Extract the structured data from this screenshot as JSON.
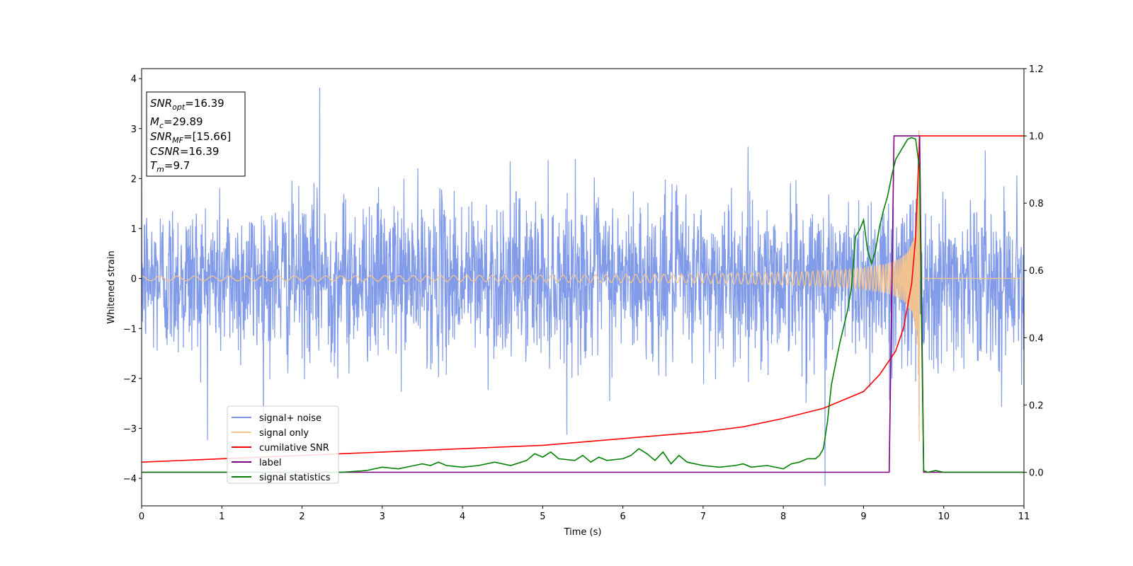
{
  "chart_data": {
    "type": "line",
    "title": "",
    "xlabel": "Time (s)",
    "ylabel": "Whitened strain",
    "xlim": [
      0,
      11
    ],
    "ylim": [
      -4.55,
      4.2
    ],
    "y2lim": [
      -0.1,
      1.2
    ],
    "x_ticks": [
      "0",
      "1",
      "2",
      "3",
      "4",
      "5",
      "6",
      "7",
      "8",
      "9",
      "10",
      "11"
    ],
    "y_ticks": [
      "−4",
      "−3",
      "−2",
      "−1",
      "0",
      "1",
      "2",
      "3",
      "4"
    ],
    "y2_ticks": [
      "0.0",
      "0.2",
      "0.4",
      "0.6",
      "0.8",
      "1.0",
      "1.2"
    ],
    "y_tick_values": [
      -4,
      -3,
      -2,
      -1,
      0,
      1,
      2,
      3,
      4
    ],
    "y2_tick_values": [
      0,
      0.2,
      0.4,
      0.6,
      0.8,
      1.0,
      1.2
    ],
    "grid": false,
    "legend_position": "lower-left",
    "info_box": {
      "snr_opt": {
        "base": "SNR",
        "sub": "opt",
        "value": "=16.39"
      },
      "mc": {
        "base": "M",
        "sub": "c",
        "value": "=29.89"
      },
      "snr_mf": {
        "base": "SNR",
        "sub": "MF",
        "value": "=[15.66]"
      },
      "csnr": {
        "base": "CSNR",
        "value": "=16.39"
      },
      "tm": {
        "base": "T",
        "sub": "m",
        "value": "=9.7"
      }
    },
    "series": [
      {
        "name": "signal+ noise",
        "axis": "left",
        "color": "#7b96e8",
        "amplitude_std": 0.8,
        "x_range": [
          0,
          11
        ],
        "peak": {
          "x": 2.22,
          "y": 3.82
        },
        "trough": {
          "x": 8.52,
          "y": -4.15
        }
      },
      {
        "name": "signal only",
        "axis": "left",
        "color": "#f5c48a",
        "merger_time": 9.7,
        "peak_amplitude": 3.3
      },
      {
        "name": "cumilative SNR",
        "axis": "right",
        "color": "#ff0000",
        "x": [
          0,
          1,
          2,
          3,
          4,
          5,
          6,
          7,
          7.5,
          8,
          8.5,
          9,
          9.2,
          9.4,
          9.5,
          9.6,
          9.65,
          9.7,
          9.75,
          11
        ],
        "y": [
          0.03,
          0.04,
          0.05,
          0.06,
          0.07,
          0.08,
          0.1,
          0.12,
          0.135,
          0.16,
          0.19,
          0.24,
          0.29,
          0.36,
          0.43,
          0.56,
          0.7,
          1.0,
          1.0,
          1.0
        ]
      },
      {
        "name": "label",
        "axis": "right",
        "color": "#800080",
        "x": [
          0,
          9.32,
          9.38,
          9.7,
          9.75,
          11
        ],
        "y": [
          0,
          0,
          1,
          1,
          0,
          0
        ]
      },
      {
        "name": "signal statistics",
        "axis": "right",
        "color": "#008000",
        "x": [
          0,
          0.5,
          1,
          1.5,
          2,
          2.5,
          2.8,
          3.0,
          3.2,
          3.4,
          3.5,
          3.6,
          3.7,
          3.8,
          4.0,
          4.2,
          4.4,
          4.6,
          4.8,
          4.9,
          5.0,
          5.1,
          5.2,
          5.4,
          5.5,
          5.6,
          5.7,
          5.8,
          6.0,
          6.1,
          6.2,
          6.3,
          6.4,
          6.5,
          6.6,
          6.7,
          6.8,
          7.0,
          7.2,
          7.4,
          7.5,
          7.6,
          7.8,
          8.0,
          8.1,
          8.2,
          8.3,
          8.4,
          8.45,
          8.5,
          8.55,
          8.6,
          8.7,
          8.8,
          8.85,
          8.9,
          8.95,
          9.0,
          9.05,
          9.1,
          9.15,
          9.2,
          9.25,
          9.3,
          9.35,
          9.4,
          9.45,
          9.5,
          9.55,
          9.6,
          9.65,
          9.7,
          9.72,
          9.75,
          9.8,
          9.9,
          10.0,
          10.2,
          10.5,
          11
        ],
        "y": [
          0,
          0,
          0,
          0,
          0,
          0,
          0.005,
          0.015,
          0.01,
          0.02,
          0.025,
          0.02,
          0.03,
          0.02,
          0.015,
          0.02,
          0.03,
          0.02,
          0.035,
          0.055,
          0.045,
          0.06,
          0.04,
          0.035,
          0.05,
          0.03,
          0.045,
          0.035,
          0.04,
          0.05,
          0.07,
          0.055,
          0.035,
          0.06,
          0.025,
          0.05,
          0.03,
          0.02,
          0.015,
          0.02,
          0.025,
          0.015,
          0.02,
          0.01,
          0.025,
          0.03,
          0.04,
          0.04,
          0.05,
          0.07,
          0.15,
          0.26,
          0.38,
          0.48,
          0.55,
          0.7,
          0.72,
          0.75,
          0.66,
          0.62,
          0.66,
          0.73,
          0.78,
          0.82,
          0.88,
          0.93,
          0.95,
          0.97,
          0.99,
          0.995,
          0.99,
          0.9,
          0.5,
          0.005,
          0.0,
          0.005,
          0.0,
          0.0,
          0.0,
          0.0
        ]
      }
    ]
  }
}
